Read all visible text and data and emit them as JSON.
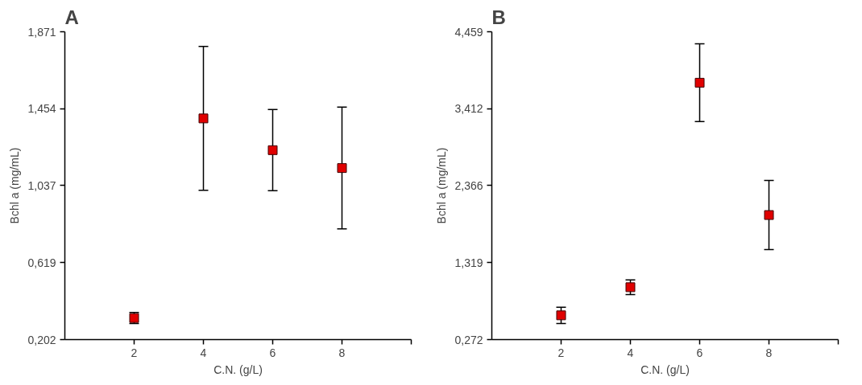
{
  "chart_data": [
    {
      "type": "scatter",
      "title": "A",
      "xlabel": "C.N. (g/L)",
      "ylabel": "Bchl a (mg/mL)",
      "x": [
        2,
        4,
        6,
        8
      ],
      "series": [
        {
          "color": "#e00000",
          "values": [
            0.319,
            1.401,
            1.229,
            1.132
          ],
          "errors": [
            0.03,
            0.39,
            0.22,
            0.33
          ]
        }
      ],
      "xlim": [
        0,
        10
      ],
      "xticks": [
        2,
        4,
        6,
        8,
        {
          "value": 10,
          "label": null
        }
      ],
      "ylim": [
        0.202,
        1.871
      ],
      "yticks": [
        {
          "value": 0.202,
          "label": "0,202"
        },
        {
          "value": 0.619,
          "label": "0,619"
        },
        {
          "value": 1.037,
          "label": "1,037"
        },
        {
          "value": 1.454,
          "label": "1,454"
        },
        {
          "value": 1.871,
          "label": "1,871"
        }
      ],
      "marker": "square",
      "grid": false
    },
    {
      "type": "scatter",
      "title": "B",
      "xlabel": "C.N. (g/L)",
      "ylabel": "Bchl a (mg/mL)",
      "x": [
        2,
        4,
        6,
        8
      ],
      "series": [
        {
          "color": "#e00000",
          "values": [
            0.602,
            0.984,
            3.766,
            1.966
          ],
          "errors": [
            0.11,
            0.1,
            0.53,
            0.47
          ]
        }
      ],
      "xlim": [
        0,
        10
      ],
      "xticks": [
        2,
        4,
        6,
        8,
        {
          "value": 10,
          "label": null
        }
      ],
      "ylim": [
        0.272,
        4.459
      ],
      "yticks": [
        {
          "value": 0.272,
          "label": "0,272"
        },
        {
          "value": 1.319,
          "label": "1,319"
        },
        {
          "value": 2.366,
          "label": "2,366"
        },
        {
          "value": 3.412,
          "label": "3,412"
        },
        {
          "value": 4.459,
          "label": "4,459"
        }
      ],
      "marker": "square",
      "grid": false
    }
  ]
}
